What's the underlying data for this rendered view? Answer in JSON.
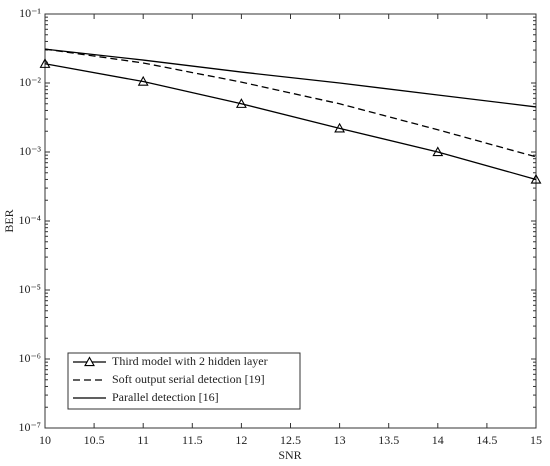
{
  "chart_data": {
    "type": "line",
    "xlabel": "SNR",
    "ylabel": "BER",
    "log_y": true,
    "grid": false,
    "legend": "lower left",
    "x": [
      10,
      11,
      12,
      13,
      14,
      15
    ],
    "series": [
      {
        "name": "Third model with 2 hidden layer",
        "color": "#000000",
        "line_style": "solid",
        "marker": "triangle",
        "values": [
          0.019,
          0.0105,
          0.005,
          0.0022,
          0.001,
          0.0004
        ]
      },
      {
        "name": "Soft output serial detection [19]",
        "color": "#000000",
        "line_style": "dashed",
        "marker": "none",
        "values": [
          0.031,
          0.0195,
          0.0103,
          0.005,
          0.0021,
          0.00085
        ]
      },
      {
        "name": "Parallel detection [16]",
        "color": "#000000",
        "line_style": "solid",
        "marker": "none",
        "values": [
          0.031,
          0.0215,
          0.0144,
          0.01,
          0.0067,
          0.0045
        ]
      }
    ],
    "xlim": [
      10,
      15
    ],
    "xticks": [
      10,
      10.5,
      11,
      11.5,
      12,
      12.5,
      13,
      13.5,
      14,
      14.5,
      15
    ],
    "ylim": [
      1e-07,
      0.1
    ],
    "yticks": [
      {
        "value": 1e-07,
        "label": "10⁻⁷"
      },
      {
        "value": 1e-06,
        "label": "10⁻⁶"
      },
      {
        "value": 1e-05,
        "label": "10⁻⁵"
      },
      {
        "value": 0.0001,
        "label": "10⁻⁴"
      },
      {
        "value": 0.001,
        "label": "10⁻³"
      },
      {
        "value": 0.01,
        "label": "10⁻²"
      },
      {
        "value": 0.1,
        "label": "10⁻¹"
      }
    ]
  }
}
